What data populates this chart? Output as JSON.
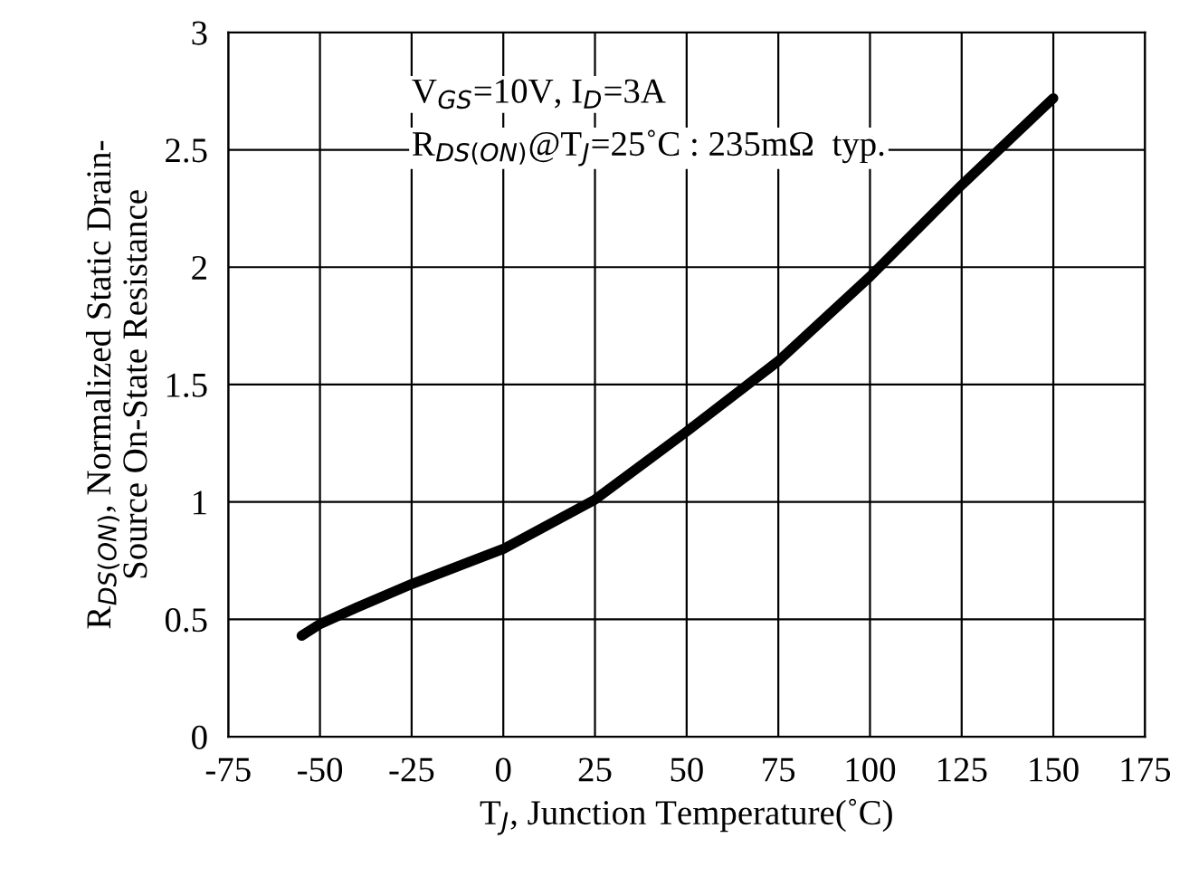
{
  "chart_data": {
    "type": "line",
    "xlabel": "T$_{J}$, Junction Temperature(˚C)",
    "ylabel": "R$_{DS(ON)}$, Normalized Static Drain-\nSource On-State Resistance",
    "x": [
      -55,
      -50,
      -40,
      -25,
      0,
      25,
      50,
      75,
      100,
      125,
      150
    ],
    "series": [
      {
        "color": "#000000",
        "values": [
          0.43,
          0.48,
          0.55,
          0.65,
          0.8,
          1.01,
          1.3,
          1.6,
          1.96,
          2.35,
          2.72
        ]
      }
    ],
    "xlim": [
      -75,
      175
    ],
    "xticks": [
      -75,
      -50,
      -25,
      0,
      25,
      50,
      75,
      100,
      125,
      150,
      175
    ],
    "ylim": [
      0,
      3
    ],
    "yticks": [
      0,
      0.5,
      1,
      1.5,
      2,
      2.5,
      3
    ],
    "grid": true,
    "marker": "none",
    "line_style": "solid",
    "annotations": [
      "V$_{GS}$=10V, I$_{D}$=3A",
      "R$_{DS(ON)}$@T$_{J}$=25˚C : 235mΩ  typ."
    ]
  }
}
